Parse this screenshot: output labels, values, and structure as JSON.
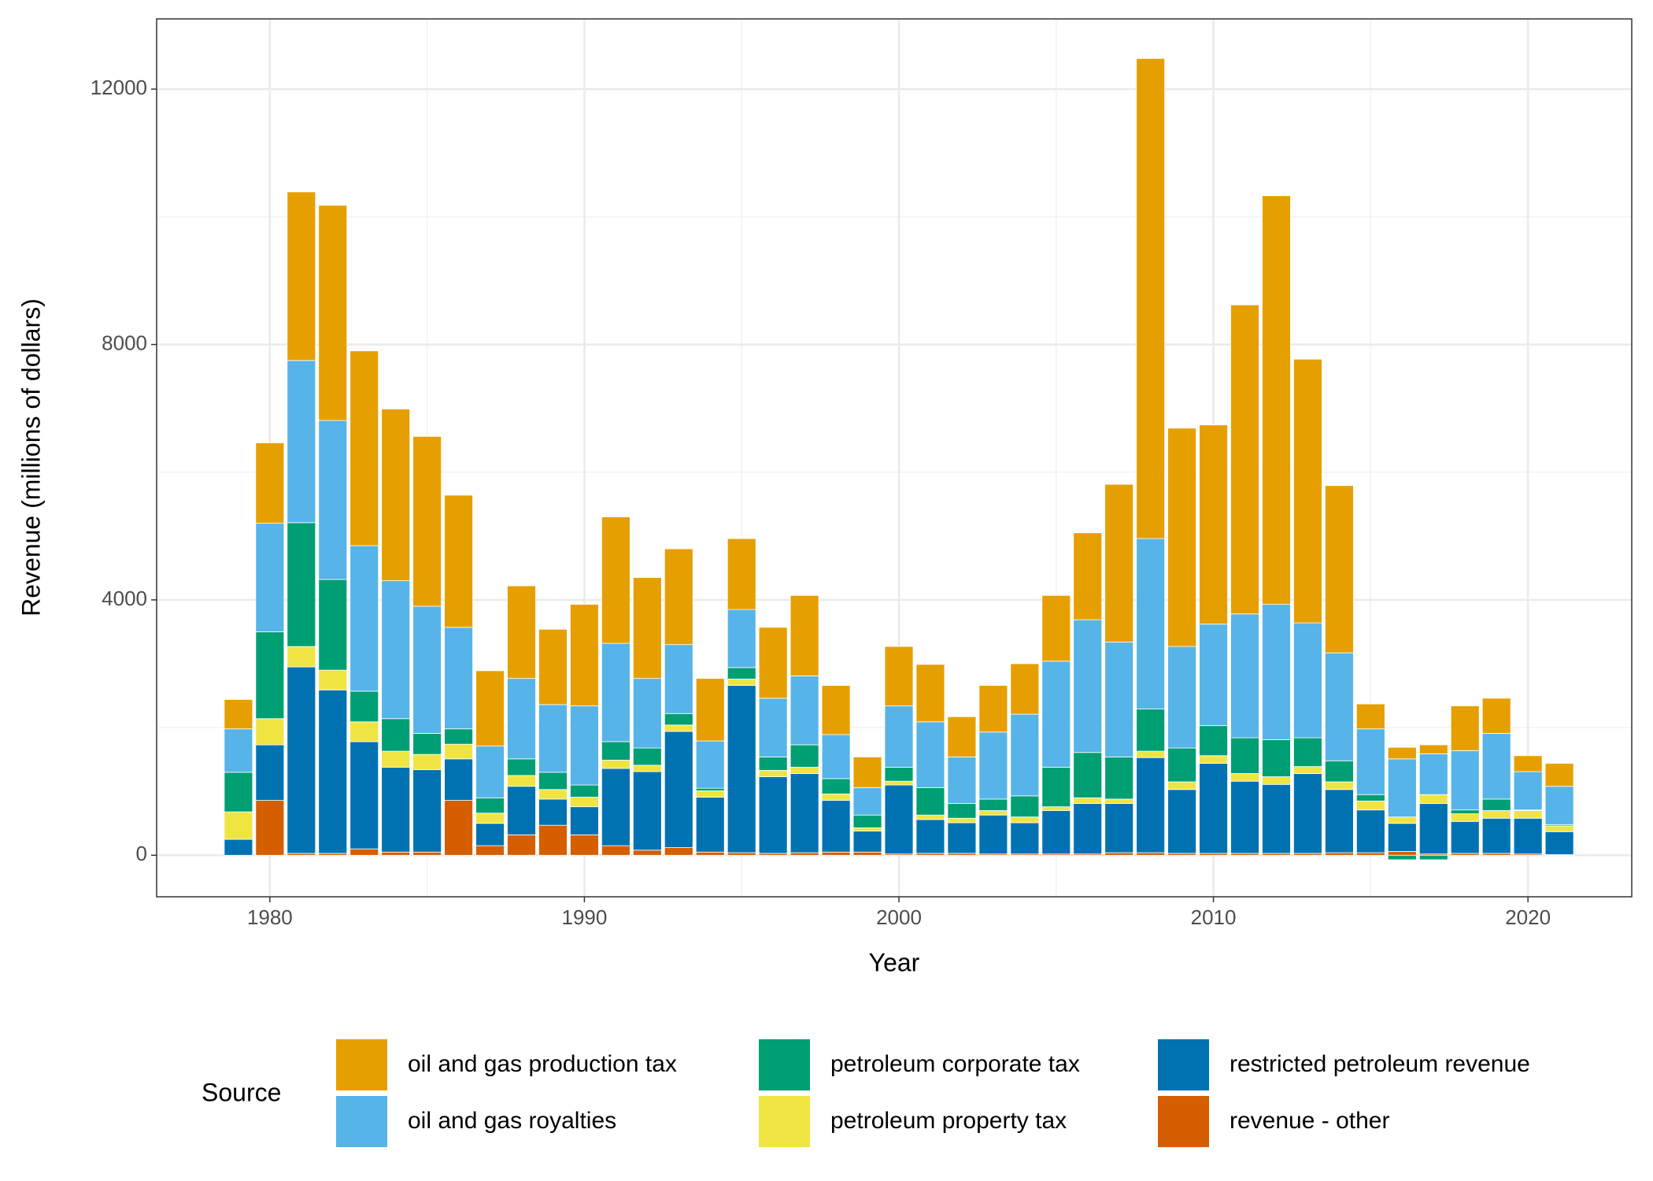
{
  "chart_data": {
    "type": "stacked_bar",
    "x_label": "Year",
    "y_label": "Revenue (millions of dollars)",
    "legend_title": "Source",
    "x": [
      1979,
      1980,
      1981,
      1982,
      1983,
      1984,
      1985,
      1986,
      1987,
      1988,
      1989,
      1990,
      1991,
      1992,
      1993,
      1994,
      1995,
      1996,
      1997,
      1998,
      1999,
      2000,
      2001,
      2002,
      2003,
      2004,
      2005,
      2006,
      2007,
      2008,
      2009,
      2010,
      2011,
      2012,
      2013,
      2014,
      2015,
      2016,
      2017,
      2018,
      2019,
      2020,
      2021
    ],
    "series": [
      {
        "name": "oil and gas production tax",
        "color": "#E69F00",
        "values": [
          460,
          1260,
          2640,
          3370,
          3050,
          2690,
          2660,
          2070,
          1180,
          1450,
          1180,
          1590,
          1980,
          1580,
          1500,
          980,
          1110,
          1110,
          1260,
          770,
          480,
          930,
          900,
          630,
          730,
          790,
          1030,
          1360,
          2470,
          7520,
          3420,
          3120,
          4840,
          6400,
          4130,
          2620,
          390,
          180,
          140,
          700,
          550,
          250,
          360
        ]
      },
      {
        "name": "oil and gas royalties",
        "color": "#56B4E9",
        "values": [
          680,
          1700,
          2540,
          2490,
          2280,
          2160,
          1990,
          1590,
          810,
          1260,
          1060,
          1240,
          1540,
          1090,
          1080,
          740,
          910,
          920,
          1080,
          690,
          430,
          960,
          1030,
          730,
          1050,
          1280,
          1660,
          2080,
          1800,
          2670,
          1590,
          1590,
          1940,
          2120,
          1800,
          1690,
          1030,
          910,
          640,
          930,
          1030,
          600,
          600
        ]
      },
      {
        "name": "petroleum corporate tax",
        "color": "#009E73",
        "values": [
          620,
          1360,
          1940,
          1420,
          480,
          510,
          330,
          240,
          240,
          260,
          270,
          190,
          290,
          270,
          180,
          40,
          180,
          210,
          350,
          240,
          200,
          220,
          430,
          230,
          180,
          330,
          620,
          710,
          660,
          660,
          530,
          470,
          560,
          580,
          450,
          330,
          100,
          -70,
          -70,
          60,
          180,
          10,
          20
        ]
      },
      {
        "name": "petroleum property tax",
        "color": "#F0E442",
        "values": [
          430,
          410,
          320,
          310,
          310,
          250,
          240,
          230,
          160,
          170,
          150,
          150,
          130,
          100,
          100,
          100,
          100,
          100,
          100,
          100,
          50,
          60,
          70,
          70,
          70,
          90,
          60,
          90,
          70,
          100,
          120,
          120,
          120,
          120,
          110,
          120,
          140,
          100,
          140,
          120,
          120,
          120,
          90
        ]
      },
      {
        "name": "restricted petroleum revenue",
        "color": "#0072B2",
        "values": [
          250,
          870,
          2920,
          2560,
          1680,
          1330,
          1290,
          650,
          350,
          760,
          410,
          440,
          1210,
          1230,
          1820,
          860,
          2620,
          1200,
          1240,
          810,
          330,
          1080,
          530,
          480,
          610,
          490,
          680,
          790,
          770,
          1490,
          1000,
          1410,
          1130,
          1080,
          1250,
          990,
          670,
          440,
          790,
          500,
          550,
          560,
          360
        ]
      },
      {
        "name": "revenue - other",
        "color": "#D55E00",
        "values": [
          0,
          860,
          30,
          30,
          100,
          50,
          50,
          860,
          150,
          320,
          470,
          320,
          150,
          80,
          120,
          50,
          40,
          30,
          40,
          50,
          50,
          20,
          30,
          30,
          20,
          20,
          20,
          20,
          40,
          40,
          30,
          30,
          30,
          30,
          30,
          40,
          40,
          60,
          20,
          30,
          30,
          20,
          10
        ]
      }
    ],
    "xlim": [
      1976.4,
      2023.3
    ],
    "xticks": [
      1980,
      1990,
      2000,
      2010,
      2020
    ],
    "ylim": [
      -650,
      13100
    ],
    "yticks": [
      0,
      4000,
      8000,
      12000
    ],
    "grid": true,
    "legend_position": "bottom"
  }
}
